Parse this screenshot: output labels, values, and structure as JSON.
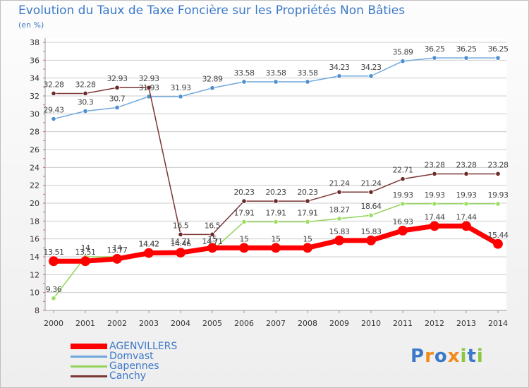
{
  "title": "Evolution du Taux de Taxe Foncière sur les Propriétés Non Bâties",
  "unit_label": "(en %)",
  "logo_text": "Proxiti",
  "colors": {
    "title": "#3c79c9",
    "AGENVILLERS": "#ff0000",
    "Domvast": "#6fa8dc",
    "Gapennes": "#93d35a",
    "Canchy": "#7b3535",
    "grid": "#cccccc",
    "axis_text": "#333333"
  },
  "chart_data": {
    "type": "line",
    "title": "Evolution du Taux de Taxe Foncière sur les Propriétés Non Bâties",
    "ylabel": "(en %)",
    "xlabel": "",
    "x": [
      "2000",
      "2001",
      "2002",
      "2003",
      "2004",
      "2005",
      "2006",
      "2007",
      "2008",
      "2009",
      "2010",
      "2011",
      "2012",
      "2013",
      "2014"
    ],
    "ylim": [
      8,
      38
    ],
    "yticks": [
      8,
      10,
      12,
      14,
      16,
      18,
      20,
      22,
      24,
      26,
      28,
      30,
      32,
      34,
      36,
      38
    ],
    "grid": "horizontal",
    "legend_position": "bottom-left",
    "series": [
      {
        "name": "Domvast",
        "values": [
          29.43,
          30.3,
          30.7,
          31.93,
          31.93,
          32.89,
          33.58,
          33.58,
          33.58,
          34.23,
          34.23,
          35.89,
          36.25,
          36.25,
          36.25
        ],
        "labels": [
          "29.43",
          "30.3",
          "30.7",
          "31.93",
          "31.93",
          "32.89",
          "33.58",
          "33.58",
          "33.58",
          "34.23",
          "34.23",
          "35.89",
          "36.25",
          "36.25",
          "36.25"
        ]
      },
      {
        "name": "Canchy",
        "values": [
          32.28,
          32.28,
          32.93,
          32.93,
          16.5,
          16.5,
          20.23,
          20.23,
          20.23,
          21.24,
          21.24,
          22.71,
          23.28,
          23.28,
          23.28
        ],
        "labels": [
          "32.28",
          "32.28",
          "32.93",
          "32.93",
          "16.5",
          "16.5",
          "20.23",
          "20.23",
          "20.23",
          "21.24",
          "21.24",
          "22.71",
          "23.28",
          "23.28",
          "23.28"
        ]
      },
      {
        "name": "Gapennes",
        "values": [
          9.36,
          14,
          14,
          14.42,
          14.71,
          14.71,
          17.91,
          17.91,
          17.91,
          18.27,
          18.64,
          19.93,
          19.93,
          19.93,
          19.93
        ],
        "labels": [
          "9.36",
          "14",
          "14",
          "14.42",
          "14.71",
          "14.71",
          "17.91",
          "17.91",
          "17.91",
          "18.27",
          "18.64",
          "19.93",
          "19.93",
          "19.93",
          "19.93"
        ]
      },
      {
        "name": "AGENVILLERS",
        "values": [
          13.51,
          13.51,
          13.77,
          14.42,
          14.46,
          15,
          15,
          15,
          15,
          15.83,
          15.83,
          16.93,
          17.44,
          17.44,
          15.44
        ],
        "labels": [
          "13.51",
          "13.51",
          "13.77",
          "14.42",
          "14.46",
          "15",
          "15",
          "15",
          "15",
          "15.83",
          "15.83",
          "16.93",
          "17.44",
          "17.44",
          "15.44"
        ]
      }
    ],
    "legend": [
      "AGENVILLERS",
      "Domvast",
      "Gapennes",
      "Canchy"
    ]
  }
}
